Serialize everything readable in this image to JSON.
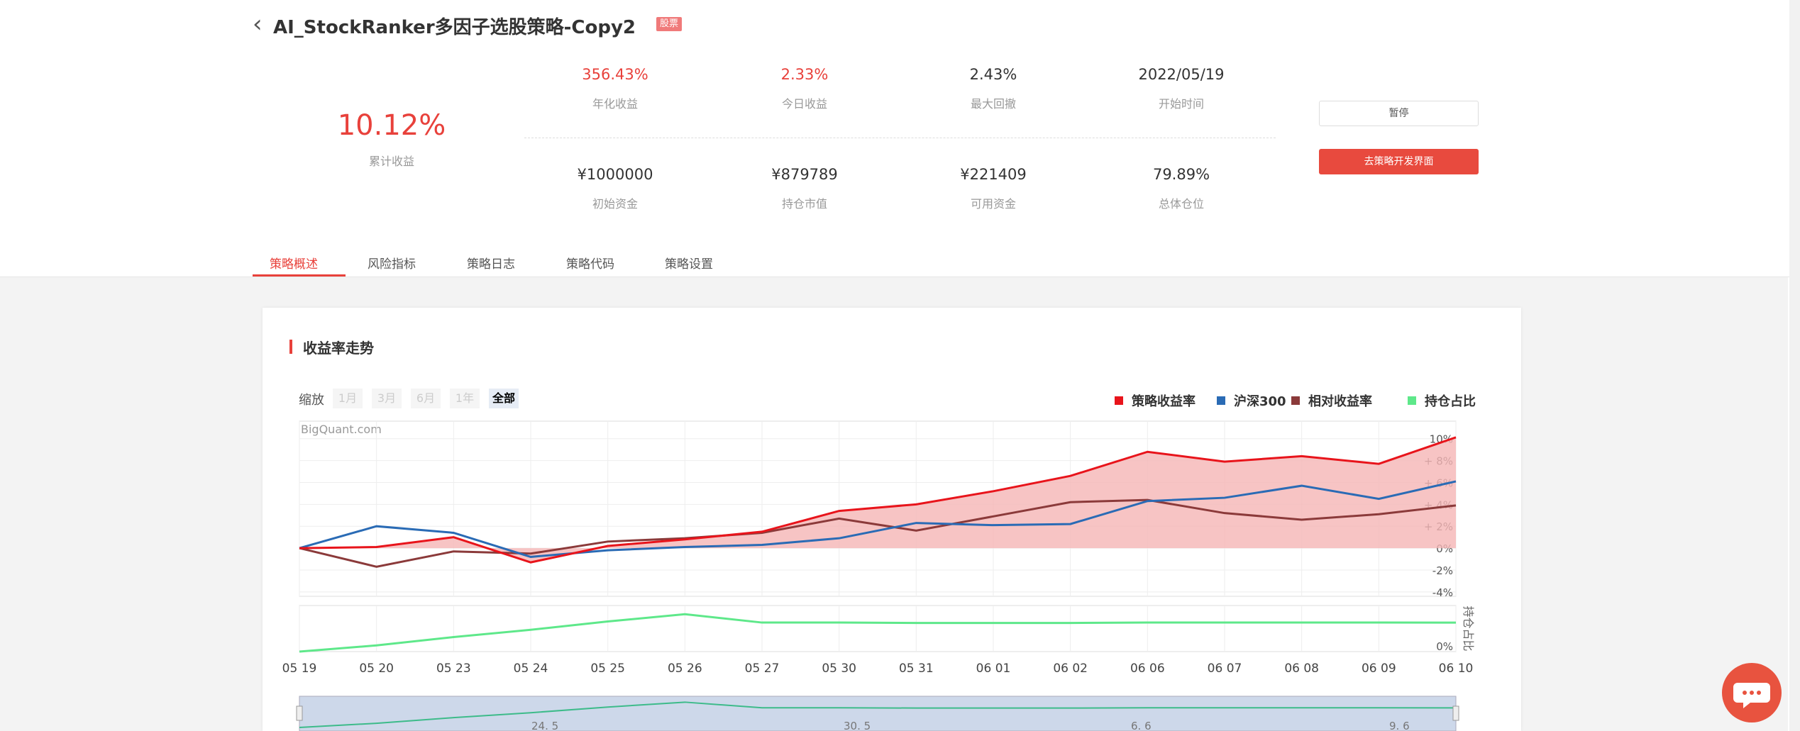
{
  "header": {
    "back": "‹",
    "title": "AI_StockRanker多因子选股策略-Copy2",
    "badge": "股票"
  },
  "summary": {
    "value": "10.12%",
    "label": "累计收益"
  },
  "stats": [
    {
      "value": "356.43%",
      "label": "年化收益"
    },
    {
      "value": "2.33%",
      "label": "今日收益"
    },
    {
      "value": "2.43%",
      "label": "最大回撤"
    },
    {
      "value": "2022/05/19",
      "label": "开始时间"
    },
    {
      "value": "¥1000000",
      "label": "初始资金"
    },
    {
      "value": "¥879789",
      "label": "持仓市值"
    },
    {
      "value": "¥221409",
      "label": "可用资金"
    },
    {
      "value": "79.89%",
      "label": "总体仓位"
    }
  ],
  "buttons": [
    "暂停",
    "去策略开发界面"
  ],
  "tabs": [
    "策略概述",
    "风险指标",
    "策略日志",
    "策略代码",
    "策略设置"
  ],
  "section": {
    "title": "收益率走势"
  },
  "zoom": {
    "label": "缩放",
    "options": [
      "1月",
      "3月",
      "6月",
      "1年",
      "全部"
    ]
  },
  "navigator": {
    "labels": [
      "24. 5",
      "30. 5",
      "6. 6",
      "9. 6"
    ]
  },
  "chart_data": {
    "type": "line",
    "watermark": "BigQuant.com",
    "categories": [
      "05 19",
      "05 20",
      "05 23",
      "05 24",
      "05 25",
      "05 26",
      "05 27",
      "05 30",
      "05 31",
      "06 01",
      "06 02",
      "06 06",
      "06 07",
      "06 08",
      "06 09",
      "06 10"
    ],
    "series": [
      {
        "name": "策略收益率",
        "color": "#e8141b",
        "values": [
          0,
          0.1,
          1,
          -1.3,
          0.2,
          0.8,
          1.5,
          3.4,
          4,
          5.2,
          6.6,
          8.8,
          7.9,
          8.4,
          7.7,
          10.12
        ]
      },
      {
        "name": "沪深300",
        "color": "#2a6bb5",
        "values": [
          0,
          2,
          1.4,
          -0.8,
          -0.2,
          0.1,
          0.3,
          0.9,
          2.3,
          2.1,
          2.2,
          4.3,
          4.6,
          5.7,
          4.5,
          6.1
        ]
      },
      {
        "name": "相对收益率",
        "color": "#8b3a3a",
        "values": [
          0,
          -1.7,
          -0.3,
          -0.5,
          0.6,
          0.9,
          1.4,
          2.7,
          1.6,
          2.9,
          4.2,
          4.4,
          3.2,
          2.6,
          3.1,
          3.9
        ]
      },
      {
        "name": "持仓占比",
        "color": "#5ee88a",
        "axis": "y2",
        "values": [
          0,
          17,
          40,
          60,
          83,
          103,
          80,
          80,
          79,
          79,
          79,
          80,
          80,
          80,
          80,
          79.89
        ]
      }
    ],
    "ylim": [
      -4.4,
      11.6
    ],
    "yticks": [
      {
        "value": -4,
        "label": "-4%"
      },
      {
        "value": -2,
        "label": "-2%"
      },
      {
        "value": 0,
        "label": "0%"
      },
      {
        "value": 2,
        "label": "+ 2%"
      },
      {
        "value": 4,
        "label": "+ 4%"
      },
      {
        "value": 6,
        "label": "+ 6%"
      },
      {
        "value": 8,
        "label": "+ 8%"
      },
      {
        "value": 10,
        "label": "10%"
      }
    ],
    "y2label": "持仓占比",
    "y2lim": [
      0,
      127
    ],
    "y2ticks": [
      {
        "value": 0,
        "label": "0%"
      }
    ],
    "grid": true,
    "fill_first_series": true,
    "legend": "top-right"
  }
}
